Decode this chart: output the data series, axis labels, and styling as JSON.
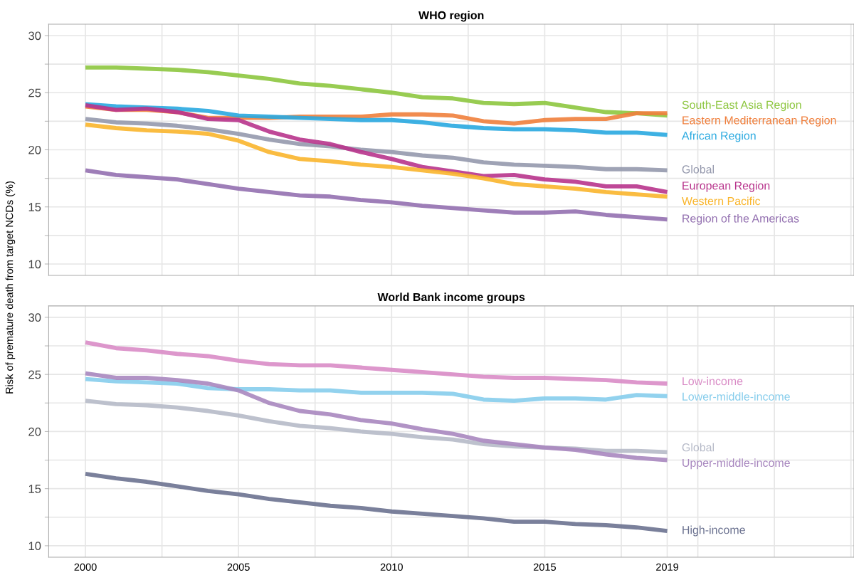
{
  "chart_data": [
    {
      "type": "line",
      "title": "WHO region",
      "ylabel": "Risk of premature death from target NCDs (%)",
      "x": [
        2000,
        2001,
        2002,
        2003,
        2004,
        2005,
        2006,
        2007,
        2008,
        2009,
        2010,
        2011,
        2012,
        2013,
        2014,
        2015,
        2016,
        2017,
        2018,
        2019
      ],
      "series": [
        {
          "name": "South-East Asia Region",
          "color": "#8dc63f",
          "values": [
            27.2,
            27.2,
            27.1,
            27.0,
            26.8,
            26.5,
            26.2,
            25.8,
            25.6,
            25.3,
            25.0,
            24.6,
            24.5,
            24.1,
            24.0,
            24.1,
            23.7,
            23.3,
            23.2,
            23.0
          ]
        },
        {
          "name": "Eastern Mediterranean Region",
          "color": "#f07f3c",
          "values": [
            23.8,
            23.5,
            23.5,
            23.3,
            22.8,
            22.8,
            22.8,
            22.9,
            22.9,
            22.9,
            23.1,
            23.1,
            23.0,
            22.5,
            22.3,
            22.6,
            22.7,
            22.7,
            23.2,
            23.2
          ]
        },
        {
          "name": "African Region",
          "color": "#29a9e0",
          "values": [
            24.0,
            23.8,
            23.7,
            23.6,
            23.4,
            23.0,
            22.9,
            22.8,
            22.7,
            22.6,
            22.6,
            22.4,
            22.1,
            21.9,
            21.8,
            21.8,
            21.7,
            21.5,
            21.5,
            21.3
          ]
        },
        {
          "name": "Global",
          "color": "#9599ad",
          "values": [
            22.7,
            22.4,
            22.3,
            22.1,
            21.8,
            21.4,
            20.9,
            20.5,
            20.3,
            20.0,
            19.8,
            19.5,
            19.3,
            18.9,
            18.7,
            18.6,
            18.5,
            18.3,
            18.3,
            18.2
          ]
        },
        {
          "name": "European Region",
          "color": "#b8348c",
          "values": [
            23.9,
            23.5,
            23.6,
            23.3,
            22.7,
            22.6,
            21.6,
            20.9,
            20.5,
            19.8,
            19.2,
            18.5,
            18.1,
            17.7,
            17.8,
            17.4,
            17.2,
            16.8,
            16.8,
            16.3
          ]
        },
        {
          "name": "Western Pacific",
          "color": "#f9b52c",
          "values": [
            22.2,
            21.9,
            21.7,
            21.6,
            21.4,
            20.8,
            19.8,
            19.2,
            19.0,
            18.7,
            18.5,
            18.2,
            17.9,
            17.5,
            17.0,
            16.8,
            16.6,
            16.3,
            16.1,
            15.9
          ]
        },
        {
          "name": "Region of the Americas",
          "color": "#9370b0",
          "values": [
            18.2,
            17.8,
            17.6,
            17.4,
            17.0,
            16.6,
            16.3,
            16.0,
            15.9,
            15.6,
            15.4,
            15.1,
            14.9,
            14.7,
            14.5,
            14.5,
            14.6,
            14.3,
            14.1,
            13.9
          ]
        }
      ],
      "xlim": [
        1998.8,
        2025.1
      ],
      "xticks": [
        2000,
        {
          "value": 2002.5,
          "label": null
        },
        2005,
        {
          "value": 2007.5,
          "label": null
        },
        2010,
        {
          "value": 2012.5,
          "label": null
        },
        2015,
        {
          "value": 2017.5,
          "label": null
        },
        2019,
        {
          "value": 2020,
          "label": null
        },
        {
          "value": 2022.5,
          "label": null
        },
        {
          "value": 2025,
          "label": null
        }
      ],
      "ylim": [
        9,
        31
      ],
      "yticks": [
        10,
        {
          "value": 12.5,
          "label": null
        },
        15,
        {
          "value": 17.5,
          "label": null
        },
        20,
        {
          "value": 22.5,
          "label": null
        },
        25,
        {
          "value": 27.5,
          "label": null
        },
        30
      ],
      "grid": true,
      "tick_labels": "y",
      "legend": false
    },
    {
      "type": "line",
      "title": "World Bank income groups",
      "x": [
        2000,
        2001,
        2002,
        2003,
        2004,
        2005,
        2006,
        2007,
        2008,
        2009,
        2010,
        2011,
        2012,
        2013,
        2014,
        2015,
        2016,
        2017,
        2018,
        2019
      ],
      "series": [
        {
          "name": "Low-income",
          "color": "#d98cc6",
          "values": [
            27.8,
            27.3,
            27.1,
            26.8,
            26.6,
            26.2,
            25.9,
            25.8,
            25.8,
            25.6,
            25.4,
            25.2,
            25.0,
            24.8,
            24.7,
            24.7,
            24.6,
            24.5,
            24.3,
            24.2
          ]
        },
        {
          "name": "Lower-middle-income",
          "color": "#86cdec",
          "values": [
            24.6,
            24.4,
            24.3,
            24.2,
            23.8,
            23.7,
            23.7,
            23.6,
            23.6,
            23.4,
            23.4,
            23.4,
            23.3,
            22.8,
            22.7,
            22.9,
            22.9,
            22.8,
            23.2,
            23.1
          ]
        },
        {
          "name": "Global",
          "color": "#b6bac8",
          "values": [
            22.7,
            22.4,
            22.3,
            22.1,
            21.8,
            21.4,
            20.9,
            20.5,
            20.3,
            20.0,
            19.8,
            19.5,
            19.3,
            18.9,
            18.7,
            18.6,
            18.5,
            18.3,
            18.3,
            18.2
          ]
        },
        {
          "name": "Upper-middle-income",
          "color": "#a887bf",
          "values": [
            25.1,
            24.7,
            24.7,
            24.5,
            24.2,
            23.6,
            22.5,
            21.8,
            21.5,
            21.0,
            20.7,
            20.2,
            19.8,
            19.2,
            18.9,
            18.6,
            18.4,
            18.0,
            17.7,
            17.5
          ]
        },
        {
          "name": "High-income",
          "color": "#6b7290",
          "values": [
            16.3,
            15.9,
            15.6,
            15.2,
            14.8,
            14.5,
            14.1,
            13.8,
            13.5,
            13.3,
            13.0,
            12.8,
            12.6,
            12.4,
            12.1,
            12.1,
            11.9,
            11.8,
            11.6,
            11.3
          ]
        }
      ],
      "xlim": [
        1998.8,
        2025.1
      ],
      "xticks": [
        2000,
        {
          "value": 2002.5,
          "label": null
        },
        2005,
        {
          "value": 2007.5,
          "label": null
        },
        2010,
        {
          "value": 2012.5,
          "label": null
        },
        2015,
        {
          "value": 2017.5,
          "label": null
        },
        2019,
        {
          "value": 2020,
          "label": null
        },
        {
          "value": 2022.5,
          "label": null
        },
        {
          "value": 2025,
          "label": null
        }
      ],
      "ylim": [
        9,
        31
      ],
      "yticks": [
        10,
        {
          "value": 12.5,
          "label": null
        },
        15,
        {
          "value": 17.5,
          "label": null
        },
        20,
        {
          "value": 22.5,
          "label": null
        },
        25,
        {
          "value": 27.5,
          "label": null
        },
        30
      ],
      "grid": true,
      "legend": false
    }
  ]
}
